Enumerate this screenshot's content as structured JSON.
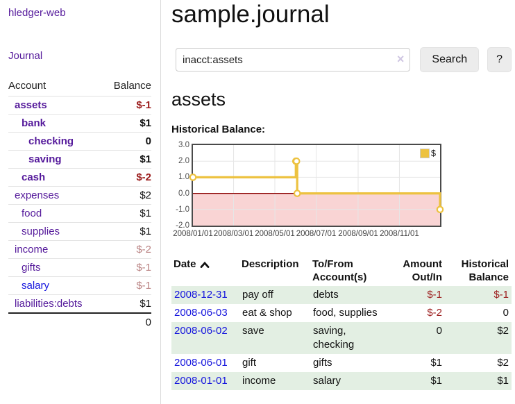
{
  "app": {
    "brand": "hledger-web"
  },
  "colors": {
    "purple": "#551a9b",
    "blue": "#1414dd",
    "negative": "#9b1c1c",
    "negative_muted": "#b98282",
    "stripe": "#e3efe3"
  },
  "sidebar": {
    "nav_journal_label": "Journal",
    "table": {
      "account_header": "Account",
      "balance_header": "Balance"
    },
    "accounts": [
      {
        "name": "assets",
        "depth": 1,
        "in_current_query": true,
        "link_state": "visited",
        "balance": "$-1",
        "balance_tone": "negative-strong"
      },
      {
        "name": "bank",
        "depth": 2,
        "in_current_query": true,
        "link_state": "visited",
        "balance": "$1",
        "balance_tone": "normal-strong"
      },
      {
        "name": "checking",
        "depth": 3,
        "in_current_query": true,
        "link_state": "visited",
        "balance": "0",
        "balance_tone": "normal-strong"
      },
      {
        "name": "saving",
        "depth": 3,
        "in_current_query": true,
        "link_state": "visited",
        "balance": "$1",
        "balance_tone": "normal-strong"
      },
      {
        "name": "cash",
        "depth": 2,
        "in_current_query": true,
        "link_state": "visited",
        "balance": "$-2",
        "balance_tone": "negative-strong"
      },
      {
        "name": "expenses",
        "depth": 1,
        "in_current_query": false,
        "link_state": "visited",
        "balance": "$2",
        "balance_tone": "normal"
      },
      {
        "name": "food",
        "depth": 2,
        "in_current_query": false,
        "link_state": "visited",
        "balance": "$1",
        "balance_tone": "normal"
      },
      {
        "name": "supplies",
        "depth": 2,
        "in_current_query": false,
        "link_state": "visited",
        "balance": "$1",
        "balance_tone": "normal"
      },
      {
        "name": "income",
        "depth": 1,
        "in_current_query": false,
        "link_state": "visited",
        "balance": "$-2",
        "balance_tone": "negative-muted"
      },
      {
        "name": "gifts",
        "depth": 2,
        "in_current_query": false,
        "link_state": "visited",
        "balance": "$-1",
        "balance_tone": "negative-muted"
      },
      {
        "name": "salary",
        "depth": 2,
        "in_current_query": false,
        "link_state": "unvisited",
        "balance": "$-1",
        "balance_tone": "negative-muted"
      },
      {
        "name": "liabilities:debts",
        "depth": 1,
        "in_current_query": false,
        "link_state": "visited",
        "balance": "$1",
        "balance_tone": "normal"
      }
    ],
    "total": "0"
  },
  "header": {
    "title": "sample.journal"
  },
  "search": {
    "query": "inacct:assets",
    "clear_icon": "×",
    "button_label": "Search",
    "help_label": "?"
  },
  "account_page": {
    "heading": "assets",
    "chart_label": "Historical Balance:"
  },
  "chart_data": {
    "type": "line",
    "title": "Historical Balance:",
    "step": true,
    "xlim": [
      "2008-01-01",
      "2008-12-31"
    ],
    "ylim": [
      -2,
      3
    ],
    "x_ticks": [
      "2008/01/01",
      "2008/03/01",
      "2008/05/01",
      "2008/07/01",
      "2008/09/01",
      "2008/11/01"
    ],
    "y_ticks": [
      "3.0",
      "2.0",
      "1.0",
      "0.0",
      "-1.0",
      "-2.0"
    ],
    "series": [
      {
        "name": "$",
        "color": "#edc240",
        "points": [
          [
            "2008-01-01",
            1
          ],
          [
            "2008-06-01",
            2
          ],
          [
            "2008-06-02",
            2
          ],
          [
            "2008-06-03",
            0
          ],
          [
            "2008-12-31",
            -1
          ]
        ]
      }
    ],
    "negative_fill": "#f9d4d4",
    "zero_line_color": "#8b0000",
    "grid": true,
    "legend_position": "top-right"
  },
  "register": {
    "headers": {
      "date": "Date",
      "description": "Description",
      "tofrom": "To/From Account(s)",
      "amount": "Amount Out/In",
      "balance": "Historical Balance"
    },
    "sort_direction": "ascending",
    "rows": [
      {
        "date": "2008-12-31",
        "description": "pay off",
        "accounts": "debts",
        "amount": "$-1",
        "amount_tone": "negative",
        "balance": "$-1",
        "balance_tone": "negative"
      },
      {
        "date": "2008-06-03",
        "description": "eat & shop",
        "accounts": "food, supplies",
        "amount": "$-2",
        "amount_tone": "negative",
        "balance": "0",
        "balance_tone": "normal"
      },
      {
        "date": "2008-06-02",
        "description": "save",
        "accounts": "saving, checking",
        "amount": "0",
        "amount_tone": "normal",
        "balance": "$2",
        "balance_tone": "normal"
      },
      {
        "date": "2008-06-01",
        "description": "gift",
        "accounts": "gifts",
        "amount": "$1",
        "amount_tone": "normal",
        "balance": "$2",
        "balance_tone": "normal"
      },
      {
        "date": "2008-01-01",
        "description": "income",
        "accounts": "salary",
        "amount": "$1",
        "amount_tone": "normal",
        "balance": "$1",
        "balance_tone": "normal"
      }
    ]
  }
}
